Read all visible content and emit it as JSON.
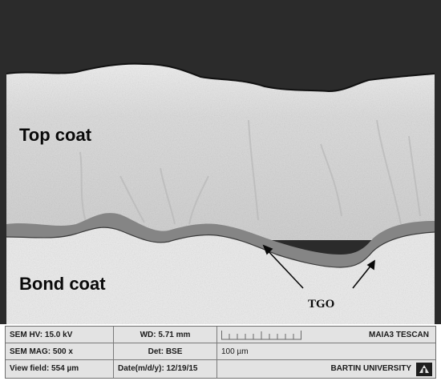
{
  "image": {
    "labels": {
      "top_coat": "Top coat",
      "bond_coat": "Bond coat",
      "tgo": "TGO"
    },
    "colors": {
      "background_dark": "#2b2b2b",
      "top_coat": "#d8d8d8",
      "tgo_layer": "#858585",
      "bond_coat": "#ededed",
      "labels": "#0a0a0a"
    }
  },
  "info_bar": {
    "sem_hv": "SEM HV: 15.0 kV",
    "wd": "WD: 5.71 mm",
    "vendor": "MAIA3 TESCAN",
    "sem_mag": "SEM MAG: 500 x",
    "det": "Det: BSE",
    "scale": "100 µm",
    "view_field": "View field: 554 µm",
    "date": "Date(m/d/y): 12/19/15",
    "institution": "BARTIN UNIVERSITY",
    "logo_icon": "tescan-logo-icon"
  }
}
